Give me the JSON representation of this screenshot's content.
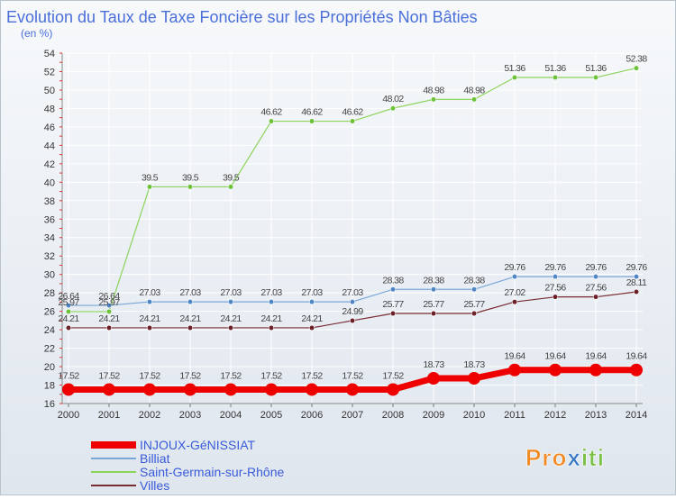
{
  "colors": {
    "title": "#4a6fd9",
    "axis_text": "#333333",
    "grid": "#ffffff",
    "legend_text": "#3a5bd9",
    "logo_orange": "#f08a24",
    "logo_blue": "#3a78c8",
    "logo_green": "#7ac143"
  },
  "logo": {
    "text": "Proxiti",
    "parts": [
      "Pro",
      "x",
      "iti"
    ]
  },
  "chart_data": {
    "type": "line",
    "title": "Evolution du Taux de Taxe Foncière sur les Propriétés Non Bâties",
    "ylabel": "(en %)",
    "xlabel": "",
    "ylim": [
      16,
      54
    ],
    "yticks": [
      16,
      18,
      20,
      22,
      24,
      26,
      28,
      30,
      32,
      34,
      36,
      38,
      40,
      42,
      44,
      46,
      48,
      50,
      52,
      54
    ],
    "categories": [
      "2000",
      "2001",
      "2002",
      "2003",
      "2004",
      "2005",
      "2006",
      "2007",
      "2008",
      "2009",
      "2010",
      "2011",
      "2012",
      "2013",
      "2014"
    ],
    "grid": true,
    "legend_position": "bottom-left",
    "series": [
      {
        "name": "Saint-Germain-sur-Rhône",
        "color": "#8cd35c",
        "marker": "#6dc23a",
        "width": 1.2,
        "values": [
          25.97,
          25.97,
          39.5,
          39.5,
          39.5,
          46.62,
          46.62,
          46.62,
          48.02,
          48.98,
          48.98,
          51.36,
          51.36,
          51.36,
          52.38
        ],
        "labels": [
          "25.97",
          "25.97",
          "39.5",
          "39.5",
          "39.5",
          "46.62",
          "46.62",
          "46.62",
          "48.02",
          "48.98",
          "48.98",
          "51.36",
          "51.36",
          "51.36",
          "52.38"
        ]
      },
      {
        "name": "Billiat",
        "color": "#7aa6d8",
        "marker": "#4f86c6",
        "width": 1.2,
        "values": [
          26.64,
          26.64,
          27.03,
          27.03,
          27.03,
          27.03,
          27.03,
          27.03,
          28.38,
          28.38,
          28.38,
          29.76,
          29.76,
          29.76,
          29.76
        ],
        "labels": [
          "26.64",
          "26.64",
          "27.03",
          "27.03",
          "27.03",
          "27.03",
          "27.03",
          "27.03",
          "28.38",
          "28.38",
          "28.38",
          "29.76",
          "29.76",
          "29.76",
          "29.76"
        ]
      },
      {
        "name": "Villes",
        "color": "#7a2c33",
        "marker": "#6b1f27",
        "width": 1.2,
        "values": [
          24.21,
          24.21,
          24.21,
          24.21,
          24.21,
          24.21,
          24.21,
          24.99,
          25.77,
          25.77,
          25.77,
          27.02,
          27.56,
          27.56,
          28.11
        ],
        "labels": [
          "24.21",
          "24.21",
          "24.21",
          "24.21",
          "24.21",
          "24.21",
          "24.21",
          "24.99",
          "25.77",
          "25.77",
          "25.77",
          "27.02",
          "27.56",
          "27.56",
          "28.11"
        ]
      },
      {
        "name": "INJOUX-GéNISSIAT",
        "color": "#ee0000",
        "marker": "#ee0000",
        "width": 7,
        "values": [
          17.52,
          17.52,
          17.52,
          17.52,
          17.52,
          17.52,
          17.52,
          17.52,
          17.52,
          18.73,
          18.73,
          19.64,
          19.64,
          19.64,
          19.64
        ],
        "labels": [
          "17.52",
          "17.52",
          "17.52",
          "17.52",
          "17.52",
          "17.52",
          "17.52",
          "17.52",
          "17.52",
          "18.73",
          "18.73",
          "19.64",
          "19.64",
          "19.64",
          "19.64"
        ]
      }
    ],
    "legend_order": [
      "INJOUX-GéNISSIAT",
      "Billiat",
      "Saint-Germain-sur-Rhône",
      "Villes"
    ]
  }
}
